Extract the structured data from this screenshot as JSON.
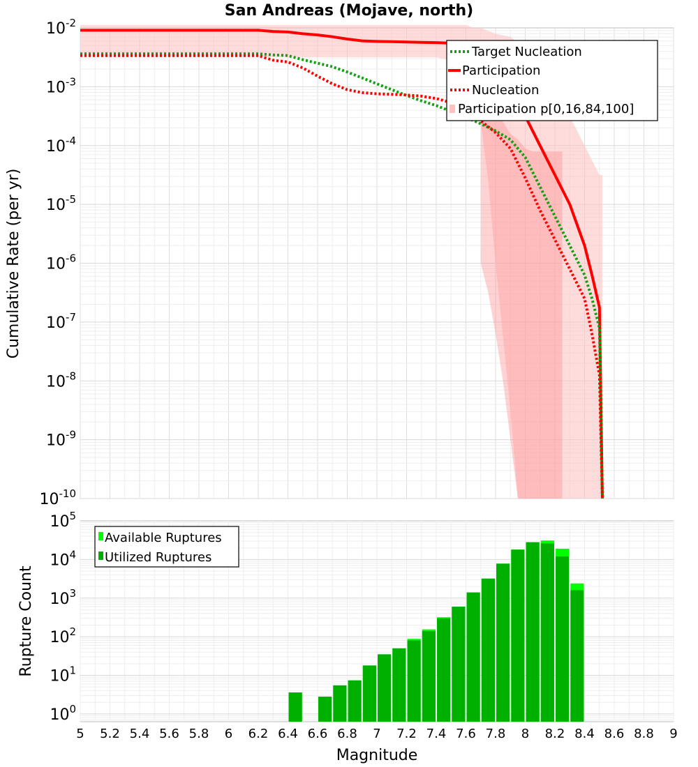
{
  "chart_data": [
    {
      "type": "line",
      "title": "San Andreas (Mojave,  north)",
      "ylabel": "Cumulative Rate (per yr)",
      "xlabel": "",
      "xlim": [
        5,
        9
      ],
      "ylim_log10": [
        -10,
        -2
      ],
      "yscale": "log",
      "grid": true,
      "legend_position": "top-right",
      "ytick_labels": [
        {
          "base": "10",
          "exp": "-2"
        },
        {
          "base": "10",
          "exp": "-3"
        },
        {
          "base": "10",
          "exp": "-4"
        },
        {
          "base": "10",
          "exp": "-5"
        },
        {
          "base": "10",
          "exp": "-6"
        },
        {
          "base": "10",
          "exp": "-7"
        },
        {
          "base": "10",
          "exp": "-8"
        },
        {
          "base": "10",
          "exp": "-9"
        },
        {
          "base": "10",
          "exp": "-10"
        }
      ],
      "series": [
        {
          "name": "Target Nucleation",
          "color": "#10a010",
          "style": "dotted",
          "x": [
            5.0,
            6.2,
            6.3,
            6.4,
            6.5,
            6.6,
            6.7,
            6.8,
            6.9,
            7.0,
            7.1,
            7.2,
            7.3,
            7.4,
            7.5,
            7.6,
            7.7,
            7.8,
            7.9,
            8.0,
            8.1,
            8.2,
            8.3,
            8.4,
            8.45,
            8.5,
            8.52
          ],
          "log10_y": [
            -2.44,
            -2.44,
            -2.46,
            -2.47,
            -2.54,
            -2.6,
            -2.66,
            -2.75,
            -2.85,
            -2.95,
            -3.05,
            -3.15,
            -3.24,
            -3.32,
            -3.42,
            -3.52,
            -3.63,
            -3.75,
            -3.9,
            -4.2,
            -4.7,
            -5.2,
            -5.7,
            -6.2,
            -6.6,
            -7.1,
            -10.0
          ]
        },
        {
          "name": "Participation",
          "color": "#ff0000",
          "style": "solid",
          "x": [
            5.0,
            6.2,
            6.3,
            6.4,
            6.5,
            6.6,
            6.7,
            6.8,
            6.9,
            7.0,
            7.1,
            7.2,
            7.3,
            7.4,
            7.5,
            7.6,
            7.7,
            7.8,
            7.9,
            8.0,
            8.1,
            8.2,
            8.3,
            8.4,
            8.45,
            8.5,
            8.52
          ],
          "log10_y": [
            -2.04,
            -2.04,
            -2.06,
            -2.07,
            -2.1,
            -2.12,
            -2.15,
            -2.19,
            -2.22,
            -2.23,
            -2.235,
            -2.24,
            -2.245,
            -2.25,
            -2.26,
            -2.3,
            -2.45,
            -2.75,
            -3.1,
            -3.5,
            -4.0,
            -4.5,
            -5.0,
            -5.7,
            -6.2,
            -6.75,
            -10.0
          ]
        },
        {
          "name": "Nucleation",
          "color": "#ff0000",
          "style": "dotted",
          "x": [
            5.0,
            6.2,
            6.3,
            6.4,
            6.5,
            6.6,
            6.7,
            6.8,
            6.9,
            7.0,
            7.1,
            7.2,
            7.3,
            7.4,
            7.5,
            7.6,
            7.7,
            7.8,
            7.9,
            8.0,
            8.1,
            8.2,
            8.3,
            8.4,
            8.45,
            8.5,
            8.52
          ],
          "log10_y": [
            -2.47,
            -2.47,
            -2.55,
            -2.58,
            -2.68,
            -2.82,
            -2.95,
            -3.05,
            -3.1,
            -3.12,
            -3.13,
            -3.14,
            -3.16,
            -3.2,
            -3.27,
            -3.4,
            -3.58,
            -3.78,
            -4.05,
            -4.55,
            -5.1,
            -5.6,
            -6.1,
            -6.6,
            -7.2,
            -7.9,
            -10.0
          ]
        }
      ],
      "bands": [
        {
          "name": "Participation p[0,16,84,100]",
          "color": "#ffc0c0",
          "opacity": 0.55,
          "x": [
            5.0,
            5.3,
            5.6,
            5.9,
            6.2,
            6.5,
            6.8,
            7.1,
            7.4,
            7.6,
            7.65,
            7.7,
            7.75,
            7.8,
            7.9,
            7.95,
            8.0,
            8.1,
            8.2,
            8.25,
            8.3,
            8.4,
            8.5,
            8.52
          ],
          "lo": [
            -2.5,
            -2.5,
            -2.5,
            -2.5,
            -2.5,
            -2.5,
            -2.5,
            -2.5,
            -2.5,
            -2.6,
            -3.0,
            -3.6,
            -4.6,
            -6.0,
            -8.5,
            -10.0,
            -10.0,
            -10.0,
            -10.0,
            -10.0,
            -10.0,
            -10.0,
            -10.0,
            -10.0
          ],
          "hi": [
            -1.95,
            -1.95,
            -1.95,
            -1.95,
            -1.95,
            -1.95,
            -1.95,
            -1.95,
            -1.95,
            -1.95,
            -2.0,
            -2.0,
            -2.05,
            -2.1,
            -2.15,
            -2.25,
            -2.3,
            -2.6,
            -3.0,
            -3.2,
            -3.5,
            -4.0,
            -4.5,
            -4.5
          ]
        },
        {
          "name": "",
          "color": "#ff8080",
          "opacity": 0.35,
          "x": [
            7.7,
            7.75,
            7.8,
            7.85,
            7.9,
            7.95,
            8.0,
            8.05,
            8.1,
            8.2,
            8.25
          ],
          "lo": [
            -6.0,
            -6.5,
            -7.2,
            -8.0,
            -9.0,
            -10.0,
            -10.0,
            -10.0,
            -10.0,
            -10.0,
            -10.0
          ],
          "hi": [
            -3.1,
            -3.2,
            -3.4,
            -3.6,
            -3.8,
            -3.9,
            -4.05,
            -4.1,
            -4.1,
            -4.1,
            -4.1
          ]
        }
      ]
    },
    {
      "type": "bar",
      "ylabel": "Rupture Count",
      "xlabel": "Magnitude",
      "xlim": [
        5,
        9
      ],
      "yscale": "log",
      "ylim_log10": [
        -0.2,
        5
      ],
      "grid": true,
      "legend_position": "top-left",
      "ytick_labels": [
        {
          "base": "10",
          "exp": "5"
        },
        {
          "base": "10",
          "exp": "4"
        },
        {
          "base": "10",
          "exp": "3"
        },
        {
          "base": "10",
          "exp": "2"
        },
        {
          "base": "10",
          "exp": "1"
        },
        {
          "base": "10",
          "exp": "0"
        }
      ],
      "xtick_labels": [
        "5",
        "5.2",
        "5.4",
        "5.6",
        "5.8",
        "6",
        "6.2",
        "6.4",
        "6.6",
        "6.8",
        "7",
        "7.2",
        "7.4",
        "7.6",
        "7.8",
        "8",
        "8.2",
        "8.4",
        "8.6",
        "8.8",
        "9"
      ],
      "bar_width": 0.09,
      "x": [
        6.45,
        6.65,
        6.75,
        6.85,
        6.95,
        7.05,
        7.15,
        7.25,
        7.35,
        7.45,
        7.55,
        7.65,
        7.75,
        7.85,
        7.95,
        8.05,
        8.15,
        8.25,
        8.35
      ],
      "series": [
        {
          "name": "Available Ruptures",
          "color": "#00ff00",
          "values": [
            3.6,
            2.8,
            5.5,
            7.4,
            18,
            35,
            50,
            88,
            155,
            320,
            600,
            1400,
            3200,
            7800,
            18000,
            28000,
            31000,
            19000,
            2400
          ]
        },
        {
          "name": "Utilized Ruptures",
          "color": "#00b000",
          "values": [
            3.6,
            2.8,
            5.5,
            7.4,
            18,
            35,
            50,
            80,
            140,
            300,
            600,
            1400,
            3200,
            7800,
            18000,
            28000,
            26000,
            12000,
            1600
          ]
        }
      ]
    }
  ]
}
